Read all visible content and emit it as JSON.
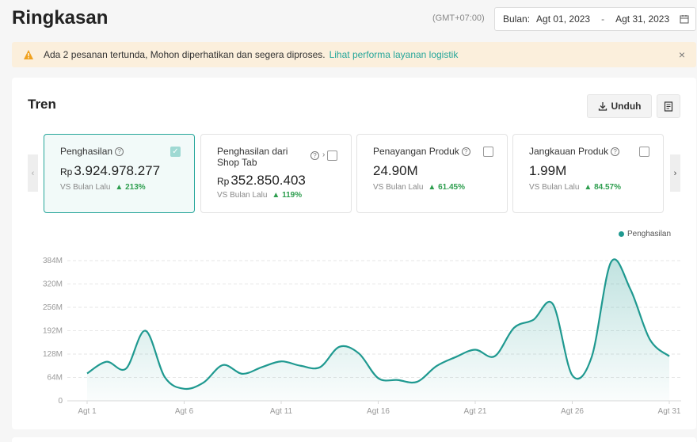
{
  "header": {
    "title": "Ringkasan",
    "timezone": "(GMT+07:00)",
    "date_label": "Bulan:",
    "date_start": "Agt 01, 2023",
    "date_separator": "-",
    "date_end": "Agt 31, 2023"
  },
  "alert": {
    "message": "Ada 2 pesanan tertunda, Mohon diperhatikan dan segera diproses.",
    "link": "Lihat performa layanan logistik",
    "close": "×"
  },
  "panel": {
    "title": "Tren",
    "download_label": "Unduh"
  },
  "metrics": [
    {
      "label": "Penghasilan",
      "currency": "Rp",
      "value": "3.924.978.277",
      "compare_label": "VS Bulan Lalu",
      "change": "213%",
      "checked": true
    },
    {
      "label": "Penghasilan dari Shop Tab",
      "currency": "Rp",
      "value": "352.850.403",
      "compare_label": "VS Bulan Lalu",
      "change": "119%",
      "checked": false
    },
    {
      "label": "Penayangan Produk",
      "currency": "",
      "value": "24.90M",
      "compare_label": "VS Bulan Lalu",
      "change": "61.45%",
      "checked": false
    },
    {
      "label": "Jangkauan Produk",
      "currency": "",
      "value": "1.99M",
      "compare_label": "VS Bulan Lalu",
      "change": "84.57%",
      "checked": false
    }
  ],
  "colors": {
    "accent": "#26a69a",
    "line": "#1f9990",
    "positive": "#2e9e4f",
    "alert_bg": "#fbefdc"
  },
  "chart_data": {
    "type": "area",
    "legend": [
      "Penghasilan"
    ],
    "legend_position": "top-right",
    "grid": true,
    "ylim": [
      0,
      384
    ],
    "y_ticks": [
      "0",
      "64M",
      "128M",
      "192M",
      "256M",
      "320M",
      "384M"
    ],
    "x_ticks": [
      "Agt 1",
      "Agt 6",
      "Agt 11",
      "Agt 16",
      "Agt 21",
      "Agt 26",
      "Agt 31"
    ],
    "series": [
      {
        "name": "Penghasilan",
        "unit": "M",
        "x": [
          1,
          2,
          3,
          4,
          5,
          6,
          7,
          8,
          9,
          10,
          11,
          12,
          13,
          14,
          15,
          16,
          17,
          18,
          19,
          20,
          21,
          22,
          23,
          24,
          25,
          26,
          27,
          28,
          29,
          30,
          31
        ],
        "values": [
          75,
          107,
          88,
          192,
          65,
          33,
          50,
          98,
          74,
          92,
          108,
          96,
          92,
          148,
          130,
          62,
          57,
          52,
          95,
          120,
          140,
          122,
          200,
          222,
          265,
          70,
          120,
          380,
          305,
          168,
          122
        ]
      }
    ]
  }
}
